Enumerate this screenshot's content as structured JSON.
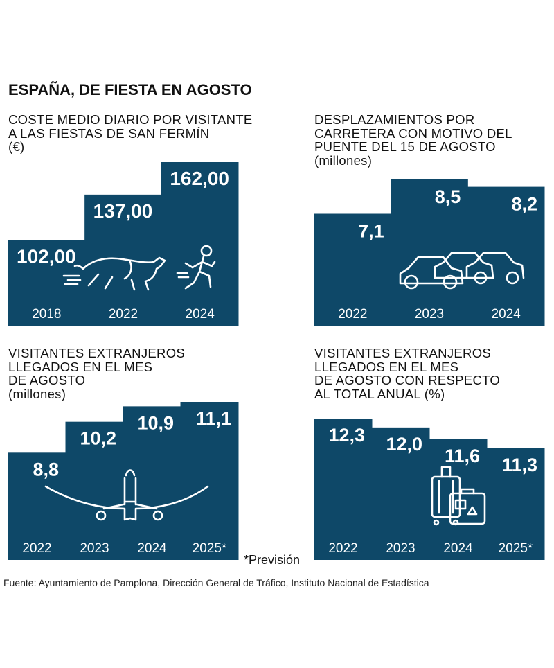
{
  "main_title": "ESPAÑA, DE FIESTA EN AGOSTO",
  "colors": {
    "block": "#0e4868",
    "text_on_block": "#ffffff"
  },
  "chart_data": [
    {
      "type": "bar",
      "title_lines": [
        "COSTE MEDIO DIARIO POR VISITANTE",
        "A LAS FIESTAS DE SAN FERMÍN",
        "(€)"
      ],
      "categories": [
        "2018",
        "2022",
        "2024"
      ],
      "values": [
        102.0,
        137.0,
        162.0
      ],
      "value_labels": [
        "102,00",
        "137,00",
        "162,00"
      ],
      "icon": "bull-and-runner-icon"
    },
    {
      "type": "bar",
      "title_lines": [
        "DESPLAZAMIENTOS POR",
        "CARRETERA CON MOTIVO DEL",
        "PUENTE DEL 15 DE AGOSTO",
        "(millones)"
      ],
      "categories": [
        "2022",
        "2023",
        "2024"
      ],
      "values": [
        7.1,
        8.5,
        8.2
      ],
      "value_labels": [
        "7,1",
        "8,5",
        "8,2"
      ],
      "icon": "cars-icon"
    },
    {
      "type": "bar",
      "title_lines": [
        "VISITANTES EXTRANJEROS",
        "LLEGADOS EN EL MES",
        "DE AGOSTO",
        "(millones)"
      ],
      "categories": [
        "2022",
        "2023",
        "2024",
        "2025*"
      ],
      "values": [
        8.8,
        10.2,
        10.9,
        11.1
      ],
      "value_labels": [
        "8,8",
        "10,2",
        "10,9",
        "11,1"
      ],
      "icon": "airplane-icon"
    },
    {
      "type": "bar",
      "title_lines": [
        "VISITANTES EXTRANJEROS",
        "LLEGADOS EN EL MES",
        "DE AGOSTO CON RESPECTO",
        "AL TOTAL ANUAL  (%)"
      ],
      "categories": [
        "2022",
        "2023",
        "2024",
        "2025*"
      ],
      "values": [
        12.3,
        12.0,
        11.6,
        11.3
      ],
      "value_labels": [
        "12,3",
        "12,0",
        "11,6",
        "11,3"
      ],
      "icon": "suitcases-icon"
    }
  ],
  "note": "*Previsión",
  "source": "Fuente: Ayuntamiento de Pamplona, Dirección General de Tráfico, Instituto Nacional de Estadística"
}
